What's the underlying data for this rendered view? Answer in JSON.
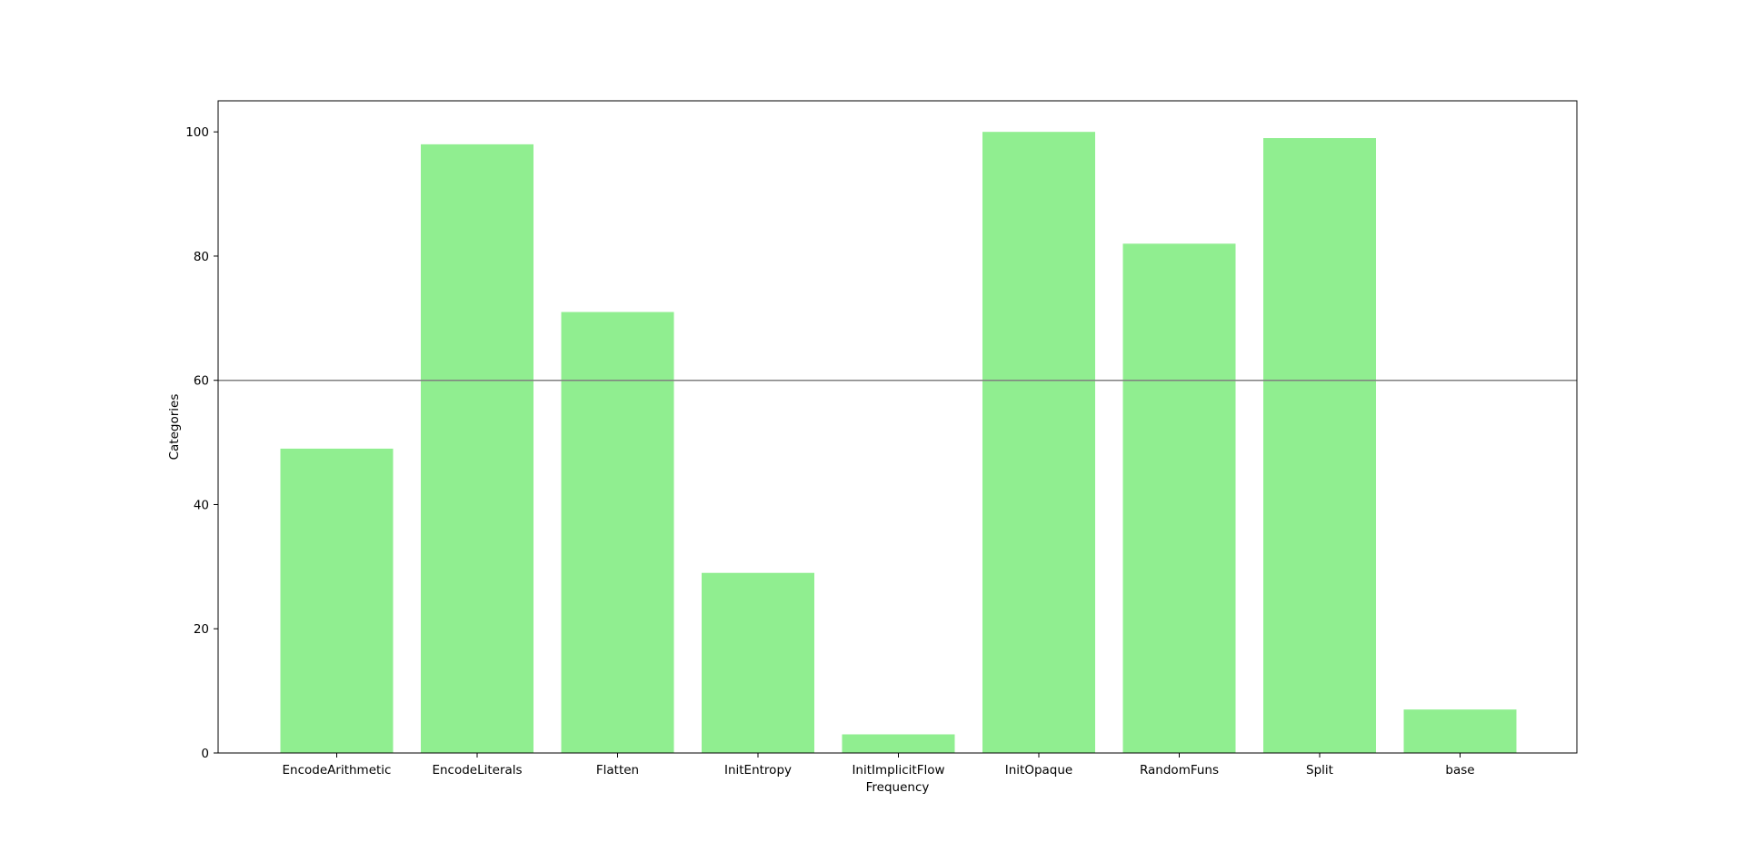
{
  "chart_data": {
    "type": "bar",
    "title": "",
    "xlabel": "Frequency",
    "ylabel": "Categories",
    "categories": [
      "EncodeArithmetic",
      "EncodeLiterals",
      "Flatten",
      "InitEntropy",
      "InitImplicitFlow",
      "InitOpaque",
      "RandomFuns",
      "Split",
      "base"
    ],
    "values": [
      49,
      98,
      71,
      29,
      3,
      100,
      82,
      99,
      7
    ],
    "ylim": [
      0,
      105
    ],
    "yticks": [
      0,
      20,
      40,
      60,
      80,
      100
    ],
    "bar_color": "#90ee90",
    "reference_line": {
      "y": 60,
      "color": "#808080"
    },
    "grid": false,
    "legend": "none"
  }
}
